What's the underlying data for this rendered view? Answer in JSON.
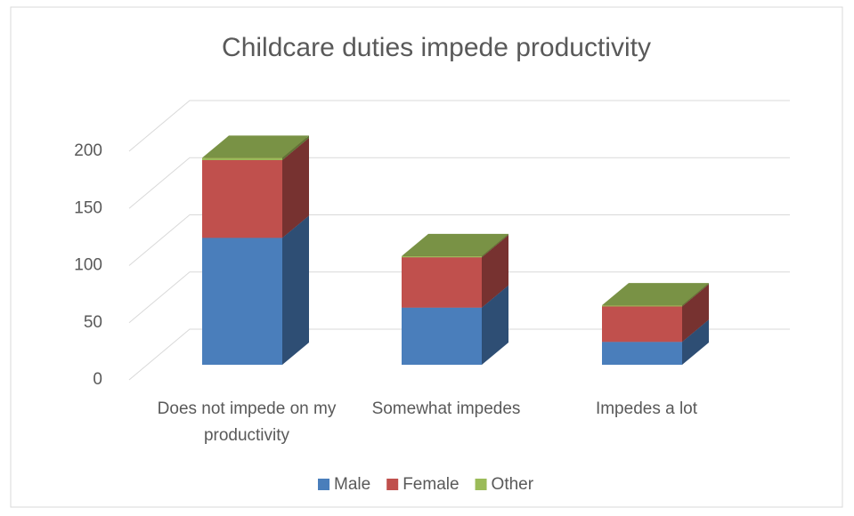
{
  "chart_data": {
    "type": "bar3d_stacked",
    "title": "Childcare duties impede productivity",
    "categories": [
      "Does not impede on my productivity",
      "Somewhat impedes",
      "Impedes a lot"
    ],
    "series": [
      {
        "name": "Male",
        "color": "#4a7ebb",
        "values": [
          111,
          50,
          20
        ]
      },
      {
        "name": "Female",
        "color": "#c0504d",
        "values": [
          68,
          44,
          31
        ]
      },
      {
        "name": "Other",
        "color": "#9bbb59",
        "values": [
          2,
          1,
          1
        ]
      }
    ],
    "ylim": [
      0,
      200
    ],
    "yticks": [
      0,
      50,
      100,
      150,
      200
    ],
    "grid": true,
    "legend": "bottom"
  }
}
